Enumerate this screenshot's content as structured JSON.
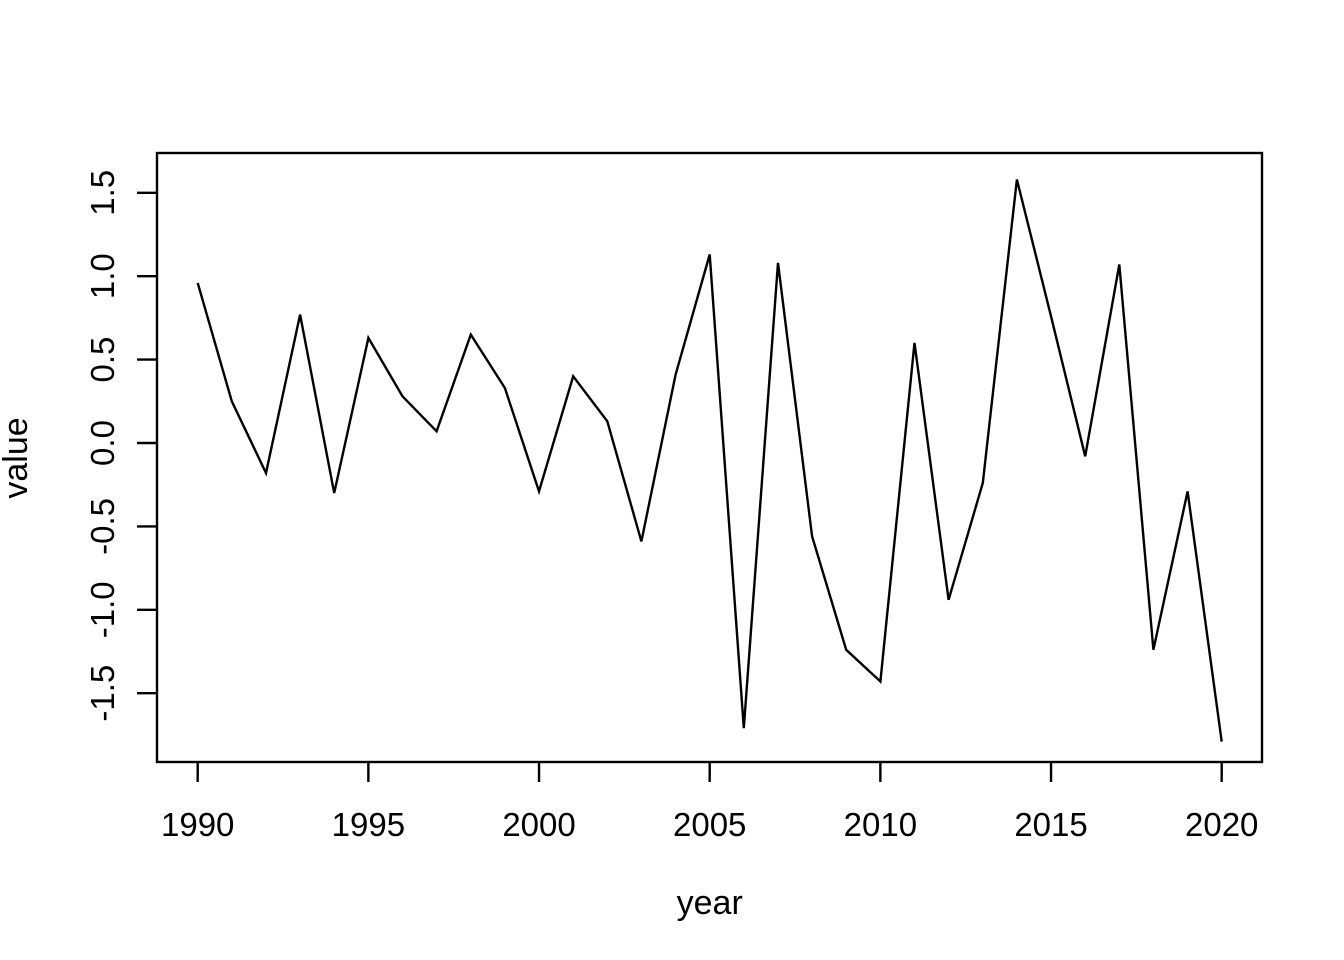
{
  "chart_data": {
    "type": "line",
    "title": "",
    "xlabel": "year",
    "ylabel": "value",
    "x": [
      1990,
      1991,
      1992,
      1993,
      1994,
      1995,
      1996,
      1997,
      1998,
      1999,
      2000,
      2001,
      2002,
      2003,
      2004,
      2005,
      2006,
      2007,
      2008,
      2009,
      2010,
      2011,
      2012,
      2013,
      2014,
      2015,
      2016,
      2017,
      2018,
      2019,
      2020
    ],
    "values": [
      0.96,
      0.25,
      -0.18,
      0.77,
      -0.3,
      0.63,
      0.28,
      0.07,
      0.65,
      0.33,
      -0.29,
      0.4,
      0.13,
      -0.59,
      0.41,
      1.13,
      -1.71,
      1.08,
      -0.56,
      -1.24,
      -1.43,
      0.6,
      -0.94,
      -0.24,
      1.58,
      0.76,
      -0.08,
      1.07,
      -1.24,
      -0.29,
      -1.79
    ],
    "x_tick_labels": [
      "1990",
      "1995",
      "2000",
      "2005",
      "2010",
      "2015",
      "2020"
    ],
    "y_tick_labels": [
      "-1.5",
      "-1.0",
      "-0.5",
      "0.0",
      "0.5",
      "1.0",
      "1.5"
    ],
    "xlim": [
      1988.8,
      2021.2
    ],
    "ylim": [
      -1.91,
      1.74
    ],
    "grid": "off",
    "legend": "none",
    "line_color": "#000000",
    "background_color": "#ffffff",
    "box": "full-frame"
  }
}
